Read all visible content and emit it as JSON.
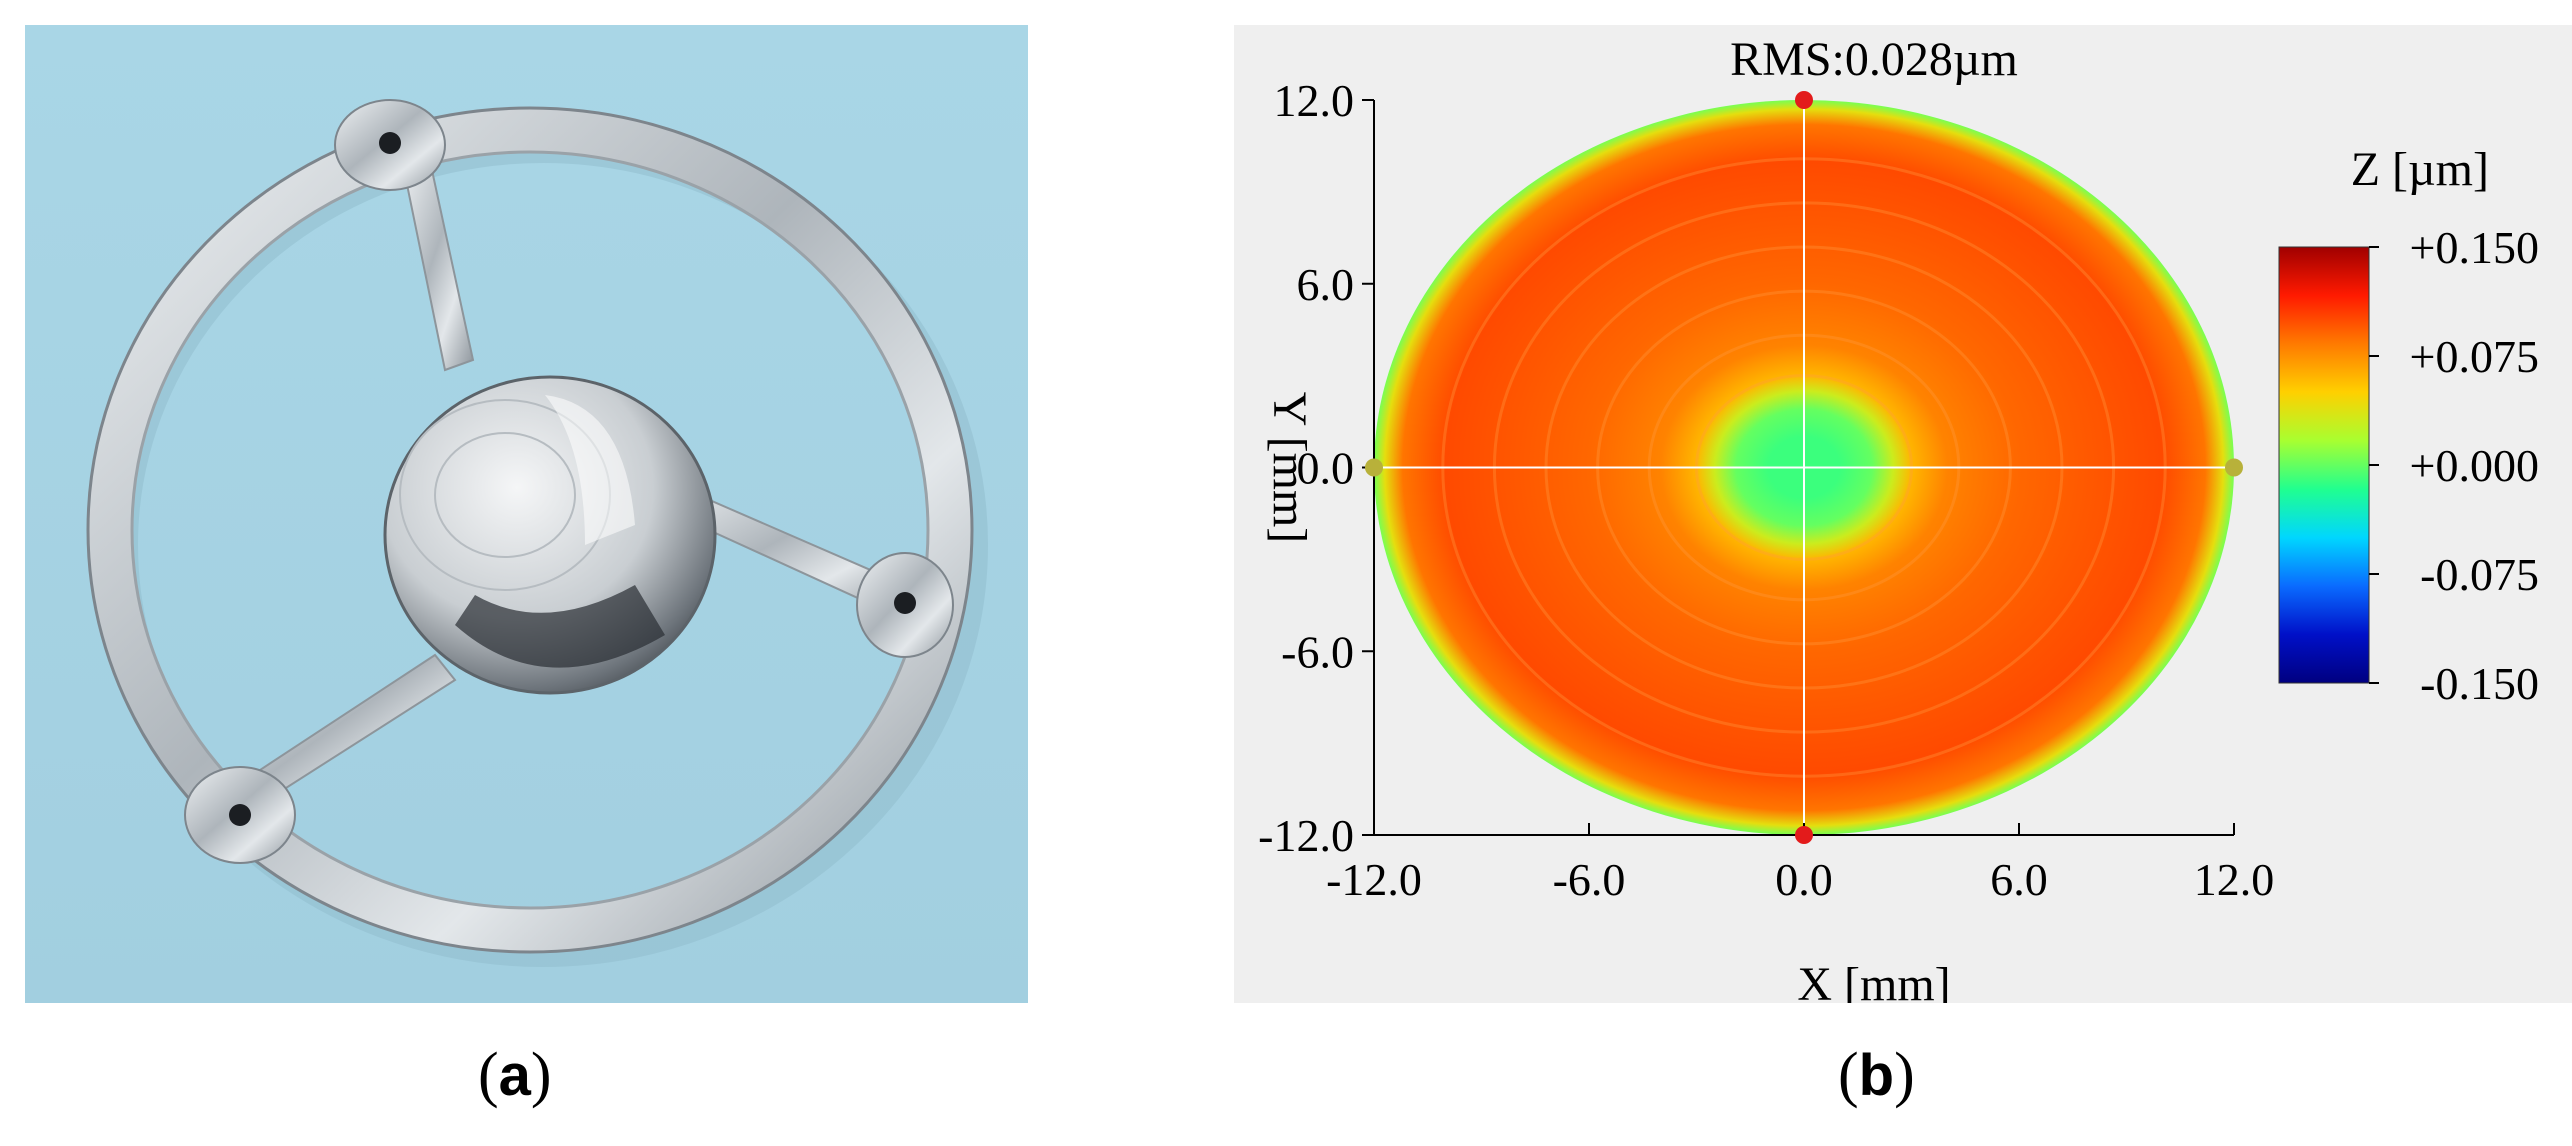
{
  "panels": {
    "a": {
      "label": "a"
    },
    "b": {
      "label": "b"
    }
  },
  "colors": {
    "photo_background": "#a7d4e4",
    "metal": "#c8cdd2",
    "map_background": "#efefef",
    "crosshair": "#ffffff",
    "marker_red": "#e31b1b",
    "marker_olive": "#b8b13a"
  },
  "chart_data": {
    "type": "heatmap",
    "title": "RMS:0.028µm",
    "xlabel": "X [mm]",
    "ylabel": "Y [mm]",
    "xlim": [
      -12.0,
      12.0
    ],
    "ylim": [
      -12.0,
      12.0
    ],
    "xticks": [
      "-12.0",
      "-6.0",
      "0.0",
      "6.0",
      "12.0"
    ],
    "yticks": [
      "12.0",
      "6.0",
      "0.0",
      "-6.0",
      "-12.0"
    ],
    "x_tick_values": [
      -12,
      -6,
      0,
      6,
      12
    ],
    "y_tick_values": [
      12,
      6,
      0,
      -6,
      -12
    ],
    "colorbar": {
      "title": "Z [µm]",
      "range": [
        -0.15,
        0.15
      ],
      "ticks": [
        "+0.150",
        "+0.075",
        "+0.000",
        "-0.075",
        "-0.150"
      ],
      "tick_values": [
        0.15,
        0.075,
        0.0,
        -0.075,
        -0.15
      ],
      "colors": [
        "#a00000",
        "#ff1a00",
        "#ff7a00",
        "#ffd000",
        "#a8ff30",
        "#20ff90",
        "#00d6ff",
        "#0a6bff",
        "#0010c8",
        "#000080"
      ]
    },
    "surface": {
      "aperture_radius_mm": 12.0,
      "rings": [
        {
          "r_mm": 12.0,
          "z_um": 0.005
        },
        {
          "r_mm": 11.7,
          "z_um": 0.04
        },
        {
          "r_mm": 11.2,
          "z_um": 0.085
        },
        {
          "r_mm": 10.0,
          "z_um": 0.1
        },
        {
          "r_mm": 8.0,
          "z_um": 0.095
        },
        {
          "r_mm": 6.0,
          "z_um": 0.09
        },
        {
          "r_mm": 4.0,
          "z_um": 0.08
        },
        {
          "r_mm": 3.0,
          "z_um": 0.06
        },
        {
          "r_mm": 2.5,
          "z_um": 0.03
        },
        {
          "r_mm": 1.9,
          "z_um": 0.0
        },
        {
          "r_mm": 1.0,
          "z_um": -0.01
        }
      ]
    },
    "markers": [
      {
        "x": 0.0,
        "y": 12.0,
        "color": "red"
      },
      {
        "x": 0.0,
        "y": -12.0,
        "color": "red"
      },
      {
        "x": -12.0,
        "y": 0.0,
        "color": "olive"
      },
      {
        "x": 12.0,
        "y": 0.0,
        "color": "olive"
      }
    ]
  }
}
